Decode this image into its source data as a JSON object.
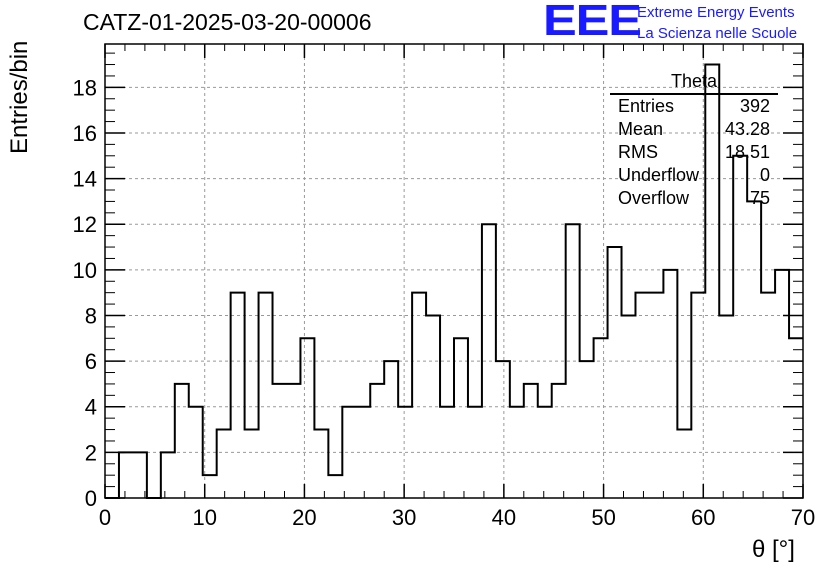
{
  "title": "CATZ-01-2025-03-20-00006",
  "brand": {
    "logo": "EEE",
    "line1": "Extreme Energy Events",
    "line2": "La Scienza nelle Scuole"
  },
  "stats": {
    "name": "Theta",
    "rows": [
      {
        "label": "Entries",
        "value": "392"
      },
      {
        "label": "Mean",
        "value": "43.28"
      },
      {
        "label": "RMS",
        "value": "18.51"
      },
      {
        "label": "Underflow",
        "value": "0"
      },
      {
        "label": "Overflow",
        "value": "75"
      }
    ]
  },
  "chart_data": {
    "type": "bar",
    "style": "step-histogram",
    "xlabel": "θ [°]",
    "ylabel": "Entries/bin",
    "xlim": [
      0,
      70
    ],
    "ylim": [
      0,
      19.9
    ],
    "grid": true,
    "xticks": [
      0,
      10,
      20,
      30,
      40,
      50,
      60,
      70
    ],
    "yticks": [
      0,
      2,
      4,
      6,
      8,
      10,
      12,
      14,
      16,
      18
    ],
    "bin_width": 1.4,
    "bin_start": 0,
    "values": [
      0,
      2,
      2,
      0,
      2,
      5,
      4,
      1,
      3,
      9,
      3,
      9,
      5,
      5,
      7,
      3,
      1,
      4,
      4,
      5,
      6,
      4,
      9,
      8,
      4,
      7,
      4,
      12,
      6,
      4,
      5,
      4,
      5,
      12,
      6,
      7,
      11,
      8,
      9,
      9,
      10,
      3,
      9,
      19,
      8,
      15,
      13,
      9,
      10,
      7
    ]
  }
}
